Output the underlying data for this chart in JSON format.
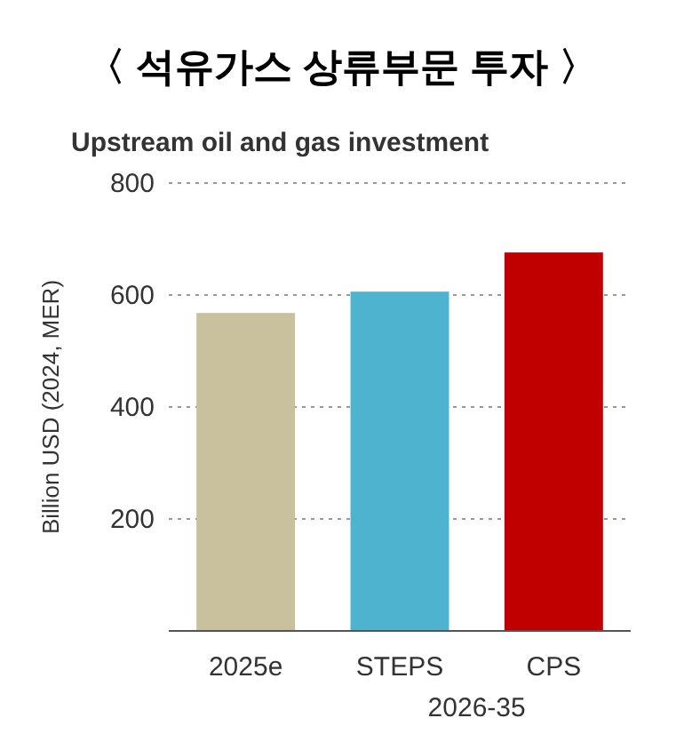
{
  "chart_data": {
    "type": "bar",
    "title": "〈 석유가스 상류부문 투자 〉",
    "subtitle": "Upstream oil and gas investment",
    "ylabel": "Billion USD (2024, MER)",
    "categories": [
      "2025e",
      "STEPS",
      "CPS"
    ],
    "values": [
      568,
      606,
      676
    ],
    "colors": [
      "#c9c19d",
      "#4db3cf",
      "#c00000"
    ],
    "ylim": [
      0,
      800
    ],
    "yticks": [
      200,
      400,
      600,
      800
    ],
    "grid": "y",
    "annotations": [
      "2026-35"
    ]
  }
}
